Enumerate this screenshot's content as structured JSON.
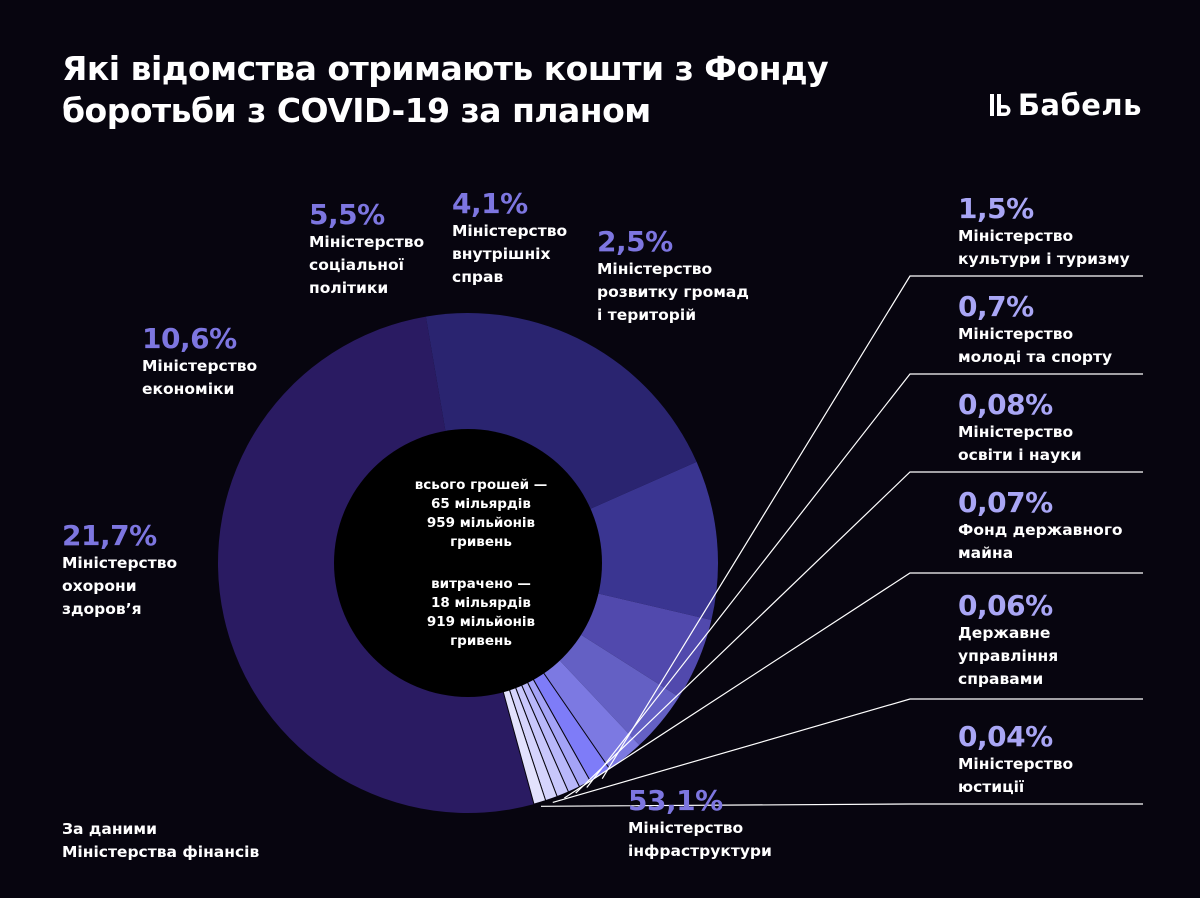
{
  "title_lines": [
    "Які відомства отримають кошти з Фонду",
    "боротьби з COVID-19 за планом"
  ],
  "brand": "Бабель",
  "colors": {
    "background": "#07050f",
    "connector": "#ffffff",
    "right_pct": "#a9a6f5"
  },
  "center": {
    "total_lines": [
      "всього грошей —",
      "65 мільярдів",
      "959 мільйонів",
      "гривень"
    ],
    "spent_lines": [
      "витрачено —",
      "18 мільярдів",
      "919 мільйонів",
      "гривень"
    ]
  },
  "source_lines": [
    "За даними",
    "Міністерства фінансів"
  ],
  "chart_data": {
    "type": "donut",
    "unit": "%",
    "slices": [
      {
        "label_lines": [
          "Міністерство",
          "інфраструктури"
        ],
        "pct_text": "53,1%",
        "value": 53.1,
        "color": "#2a1b62",
        "pct_color": "#7d76e0"
      },
      {
        "label_lines": [
          "Міністерство",
          "охорони",
          "здоров’я"
        ],
        "pct_text": "21,7%",
        "value": 21.7,
        "color": "#2a2470",
        "pct_color": "#7d76e0"
      },
      {
        "label_lines": [
          "Міністерство",
          "економіки"
        ],
        "pct_text": "10,6%",
        "value": 10.6,
        "color": "#3a3591",
        "pct_color": "#7d76e0"
      },
      {
        "label_lines": [
          "Міністерство",
          "соціальної",
          "політики"
        ],
        "pct_text": "5,5%",
        "value": 5.5,
        "color": "#5149ad",
        "pct_color": "#7d76e0"
      },
      {
        "label_lines": [
          "Міністерство",
          "внутрішніх",
          "справ"
        ],
        "pct_text": "4,1%",
        "value": 4.1,
        "color": "#6460c4",
        "pct_color": "#7d76e0"
      },
      {
        "label_lines": [
          "Міністерство",
          "розвитку громад",
          "і територій"
        ],
        "pct_text": "2,5%",
        "value": 2.5,
        "color": "#7c79e2",
        "pct_color": "#7d76e0"
      },
      {
        "label_lines": [
          "Міністерство",
          "культури і туризму"
        ],
        "pct_text": "1,5%",
        "value": 1.5,
        "color": "#7e7cf8",
        "pct_color": "#a9a6f5"
      },
      {
        "label_lines": [
          "Міністерство",
          "молоді та спорту"
        ],
        "pct_text": "0,7%",
        "value": 0.7,
        "color": "#a4a3f7",
        "pct_color": "#a9a6f5"
      },
      {
        "label_lines": [
          "Міністерство",
          "освіти і науки"
        ],
        "pct_text": "0,08%",
        "value": 0.08,
        "color": "#b9b8fa",
        "pct_color": "#a9a6f5"
      },
      {
        "label_lines": [
          "Фонд державного",
          "майна"
        ],
        "pct_text": "0,07%",
        "value": 0.07,
        "color": "#c8c7fb",
        "pct_color": "#a9a6f5"
      },
      {
        "label_lines": [
          "Державне",
          "управління",
          "справами"
        ],
        "pct_text": "0,06%",
        "value": 0.06,
        "color": "#d5d4fc",
        "pct_color": "#a9a6f5"
      },
      {
        "label_lines": [
          "Міністерство",
          "юстиції"
        ],
        "pct_text": "0,04%",
        "value": 0.04,
        "color": "#e3e2fd",
        "pct_color": "#a9a6f5"
      }
    ]
  }
}
